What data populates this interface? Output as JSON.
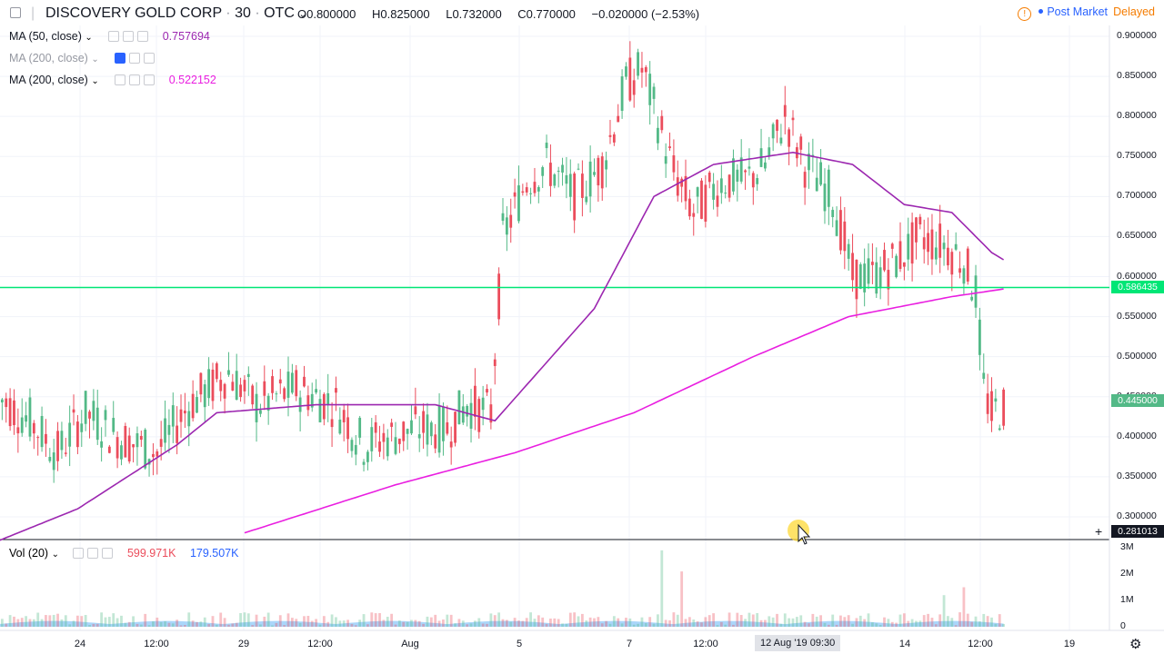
{
  "header": {
    "menu_icon": "hamburger-icon",
    "symbol": "DISCOVERY GOLD CORP",
    "interval": "30",
    "exchange": "OTC",
    "open": "O0.800000",
    "high": "H0.825000",
    "low": "L0.732000",
    "close": "C0.770000",
    "change": "−0.020000 (−2.53%)",
    "status": "Post Market",
    "delayed": "Delayed"
  },
  "indicators": [
    {
      "label": "MA (50, close)",
      "value": "0.757694",
      "color": "#9c27b0",
      "visible": true
    },
    {
      "label": "MA (200, close)",
      "value": "",
      "color": "#2962ff",
      "visible": false
    },
    {
      "label": "MA (200, close)",
      "value": "0.522152",
      "color": "#e91ee0",
      "visible": true
    }
  ],
  "volume": {
    "label": "Vol (20)",
    "value": "599.971K",
    "ma_value": "179.507K",
    "axis_labels": [
      "3M",
      "2M",
      "1M",
      "0"
    ]
  },
  "price_axis": {
    "labels": [
      "0.900000",
      "0.850000",
      "0.800000",
      "0.750000",
      "0.700000",
      "0.650000",
      "0.600000",
      "0.550000",
      "0.500000",
      "0.450000",
      "0.400000",
      "0.350000",
      "0.300000"
    ],
    "current_price": "0.586435",
    "last_tag": "0.445000",
    "cursor_price": "0.281013"
  },
  "time_axis": {
    "labels": [
      "24",
      "12:00",
      "29",
      "12:00",
      "Aug",
      "5",
      "7",
      "12:00",
      "14",
      "12:00",
      "19"
    ],
    "cursor_label": "12 Aug '19  09:30"
  },
  "colors": {
    "up": "#53b987",
    "down": "#eb4d5c",
    "ma50": "#9c27b0",
    "ma200": "#e91ee0",
    "hline": "#00e676",
    "volume_area": "#64b5f6"
  },
  "chart_data": {
    "type": "candlestick",
    "title": "DISCOVERY GOLD CORP · 30 · OTC",
    "ylim": [
      0.28,
      0.92
    ],
    "horizontal_line": 0.586435,
    "x_ticks": [
      "24",
      "12:00",
      "29",
      "12:00",
      "Aug",
      "5",
      "7",
      "12:00",
      "14",
      "12:00",
      "19"
    ],
    "bars": 255,
    "series": [
      {
        "name": "MA (50, close)",
        "keypoints": [
          [
            0,
            0.27
          ],
          [
            20,
            0.31
          ],
          [
            45,
            0.39
          ],
          [
            55,
            0.43
          ],
          [
            80,
            0.44
          ],
          [
            110,
            0.44
          ],
          [
            125,
            0.42
          ],
          [
            150,
            0.56
          ],
          [
            165,
            0.7
          ],
          [
            180,
            0.74
          ],
          [
            200,
            0.755
          ],
          [
            215,
            0.74
          ],
          [
            228,
            0.69
          ],
          [
            240,
            0.68
          ],
          [
            250,
            0.63
          ],
          [
            255,
            0.615
          ]
        ]
      },
      {
        "name": "MA (200, close)",
        "keypoints": [
          [
            62,
            0.28
          ],
          [
            100,
            0.34
          ],
          [
            130,
            0.38
          ],
          [
            160,
            0.43
          ],
          [
            190,
            0.5
          ],
          [
            214,
            0.55
          ],
          [
            240,
            0.575
          ],
          [
            255,
            0.586
          ]
        ]
      }
    ],
    "volume_spikes": [
      [
        167,
        2.9
      ],
      [
        172,
        2.1
      ],
      [
        238,
        1.2
      ],
      [
        243,
        1.5
      ]
    ]
  }
}
